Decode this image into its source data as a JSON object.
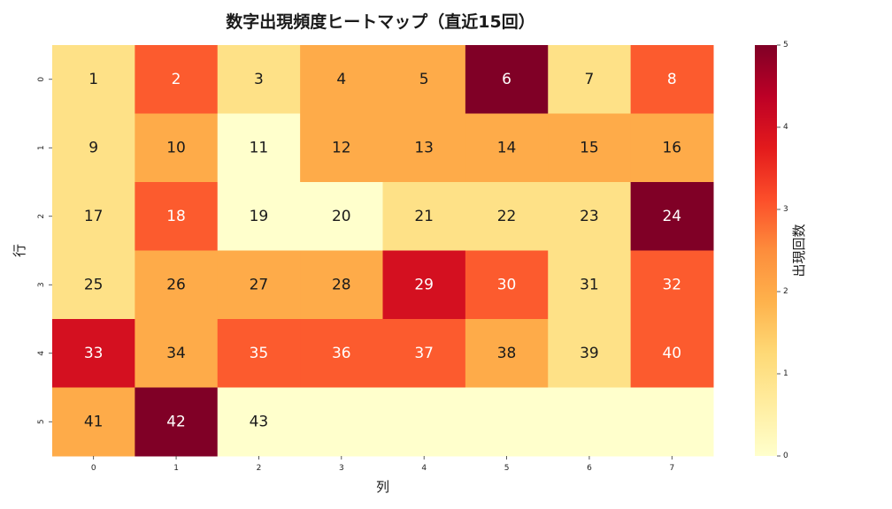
{
  "chart_data": {
    "type": "heatmap",
    "title": "数字出現頻度ヒートマップ（直近15回）",
    "xlabel": "列",
    "ylabel": "行",
    "x_categories": [
      "0",
      "1",
      "2",
      "3",
      "4",
      "5",
      "6",
      "7"
    ],
    "y_categories": [
      "0",
      "1",
      "2",
      "3",
      "4",
      "5"
    ],
    "values": [
      [
        1,
        3,
        1,
        2,
        2,
        5,
        1,
        3
      ],
      [
        1,
        2,
        0,
        2,
        2,
        2,
        2,
        2
      ],
      [
        1,
        3,
        0,
        0,
        1,
        1,
        1,
        5
      ],
      [
        1,
        2,
        2,
        2,
        4,
        3,
        1,
        3
      ],
      [
        4,
        2,
        3,
        3,
        3,
        2,
        1,
        3
      ],
      [
        2,
        5,
        0,
        0,
        0,
        0,
        0,
        0
      ]
    ],
    "cell_labels": [
      [
        "1",
        "2",
        "3",
        "4",
        "5",
        "6",
        "7",
        "8"
      ],
      [
        "9",
        "10",
        "11",
        "12",
        "13",
        "14",
        "15",
        "16"
      ],
      [
        "17",
        "18",
        "19",
        "20",
        "21",
        "22",
        "23",
        "24"
      ],
      [
        "25",
        "26",
        "27",
        "28",
        "29",
        "30",
        "31",
        "32"
      ],
      [
        "33",
        "34",
        "35",
        "36",
        "37",
        "38",
        "39",
        "40"
      ],
      [
        "41",
        "42",
        "43",
        "",
        "",
        "",
        "",
        ""
      ]
    ],
    "colorbar": {
      "label": "出現回数",
      "min": 0,
      "max": 5,
      "ticks": [
        "0",
        "1",
        "2",
        "3",
        "4",
        "5"
      ],
      "colormap": "YlOrRd",
      "stops": [
        "#ffffcc",
        "#ffeda0",
        "#fed976",
        "#feb24c",
        "#fd8d3c",
        "#fc4e2a",
        "#e31a1c",
        "#bd0026",
        "#800026"
      ]
    },
    "grid": false
  }
}
